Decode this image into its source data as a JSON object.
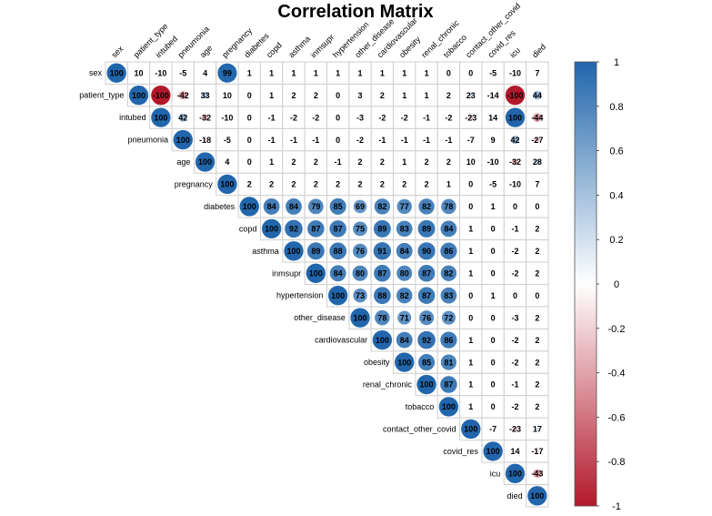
{
  "chart_data": {
    "type": "heatmap",
    "title": "Correlation Matrix",
    "layout": "upper-triangle",
    "variables": [
      "sex",
      "patient_type",
      "intubed",
      "pneumonia",
      "age",
      "pregnancy",
      "diabetes",
      "copd",
      "asthma",
      "inmsupr",
      "hypertension",
      "other_disease",
      "cardiovascular",
      "obesity",
      "renal_chronic",
      "tobacco",
      "contact_other_covid",
      "covid_res",
      "icu",
      "died"
    ],
    "values": [
      [
        100,
        10,
        -10,
        -5,
        4,
        99,
        1,
        1,
        1,
        1,
        1,
        1,
        1,
        1,
        1,
        0,
        0,
        -5,
        -10,
        7
      ],
      [
        null,
        100,
        -100,
        -42,
        33,
        10,
        0,
        1,
        2,
        2,
        0,
        3,
        2,
        1,
        1,
        2,
        23,
        -14,
        -100,
        44
      ],
      [
        null,
        null,
        100,
        42,
        -32,
        -10,
        0,
        -1,
        -2,
        -2,
        0,
        -3,
        -2,
        -2,
        -1,
        -2,
        -23,
        14,
        100,
        -44
      ],
      [
        null,
        null,
        null,
        100,
        -18,
        -5,
        0,
        -1,
        -1,
        -1,
        0,
        -2,
        -1,
        -1,
        -1,
        -1,
        -7,
        9,
        42,
        -27
      ],
      [
        null,
        null,
        null,
        null,
        100,
        4,
        0,
        1,
        2,
        2,
        -1,
        2,
        2,
        1,
        2,
        2,
        10,
        -10,
        -32,
        28
      ],
      [
        null,
        null,
        null,
        null,
        null,
        100,
        2,
        2,
        2,
        2,
        2,
        2,
        2,
        2,
        2,
        1,
        0,
        -5,
        -10,
        7
      ],
      [
        null,
        null,
        null,
        null,
        null,
        null,
        100,
        84,
        84,
        79,
        85,
        69,
        82,
        77,
        82,
        78,
        0,
        1,
        0,
        0
      ],
      [
        null,
        null,
        null,
        null,
        null,
        null,
        null,
        100,
        92,
        87,
        87,
        75,
        89,
        83,
        89,
        84,
        1,
        0,
        -1,
        2
      ],
      [
        null,
        null,
        null,
        null,
        null,
        null,
        null,
        null,
        100,
        89,
        88,
        76,
        91,
        84,
        90,
        86,
        1,
        0,
        -2,
        2
      ],
      [
        null,
        null,
        null,
        null,
        null,
        null,
        null,
        null,
        null,
        100,
        84,
        80,
        87,
        80,
        87,
        82,
        1,
        0,
        -2,
        2
      ],
      [
        null,
        null,
        null,
        null,
        null,
        null,
        null,
        null,
        null,
        null,
        100,
        73,
        88,
        82,
        87,
        83,
        0,
        1,
        0,
        0
      ],
      [
        null,
        null,
        null,
        null,
        null,
        null,
        null,
        null,
        null,
        null,
        null,
        100,
        78,
        71,
        76,
        72,
        0,
        0,
        -3,
        2
      ],
      [
        null,
        null,
        null,
        null,
        null,
        null,
        null,
        null,
        null,
        null,
        null,
        null,
        100,
        84,
        92,
        86,
        1,
        0,
        -2,
        2
      ],
      [
        null,
        null,
        null,
        null,
        null,
        null,
        null,
        null,
        null,
        null,
        null,
        null,
        null,
        100,
        85,
        81,
        1,
        0,
        -2,
        2
      ],
      [
        null,
        null,
        null,
        null,
        null,
        null,
        null,
        null,
        null,
        null,
        null,
        null,
        null,
        null,
        100,
        87,
        1,
        0,
        -1,
        2
      ],
      [
        null,
        null,
        null,
        null,
        null,
        null,
        null,
        null,
        null,
        null,
        null,
        null,
        null,
        null,
        null,
        100,
        1,
        0,
        -2,
        2
      ],
      [
        null,
        null,
        null,
        null,
        null,
        null,
        null,
        null,
        null,
        null,
        null,
        null,
        null,
        null,
        null,
        null,
        100,
        -7,
        -23,
        17
      ],
      [
        null,
        null,
        null,
        null,
        null,
        null,
        null,
        null,
        null,
        null,
        null,
        null,
        null,
        null,
        null,
        null,
        null,
        100,
        14,
        -17
      ],
      [
        null,
        null,
        null,
        null,
        null,
        null,
        null,
        null,
        null,
        null,
        null,
        null,
        null,
        null,
        null,
        null,
        null,
        null,
        100,
        -43
      ],
      [
        null,
        null,
        null,
        null,
        null,
        null,
        null,
        null,
        null,
        null,
        null,
        null,
        null,
        null,
        null,
        null,
        null,
        null,
        null,
        100
      ]
    ],
    "colorbar": {
      "range": [
        -1,
        1
      ],
      "ticks": [
        "1",
        "0.8",
        "0.6",
        "0.4",
        "0.2",
        "0",
        "-0.2",
        "-0.4",
        "-0.6",
        "-0.8",
        "-1"
      ],
      "colors": {
        "negative": "#b2182b",
        "neutral": "#ffffff",
        "positive": "#2166ac"
      }
    }
  }
}
